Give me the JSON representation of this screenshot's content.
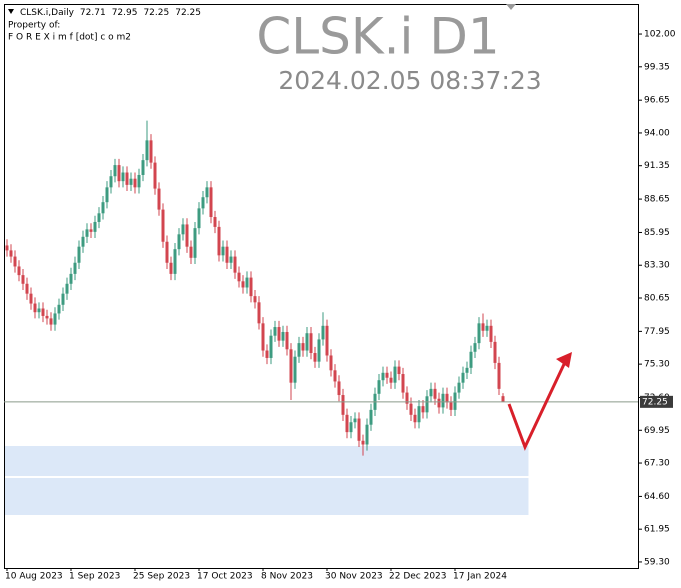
{
  "chart_data": {
    "type": "candlestick",
    "title": "CLSK.i D1",
    "subtitle": "2024.02.05 08:37:23",
    "symbol_label": "CLSK.i,Daily",
    "notes": [
      "Property of:",
      "F O R E X i m f [dot] c o m2"
    ],
    "categories": [
      "10 Aug 2023",
      null,
      null,
      null,
      null,
      null,
      null,
      null,
      null,
      null,
      null,
      null,
      null,
      null,
      null,
      null,
      "1 Sep 2023",
      null,
      null,
      null,
      null,
      null,
      null,
      null,
      null,
      null,
      null,
      null,
      null,
      null,
      null,
      null,
      "25 Sep 2023",
      null,
      null,
      null,
      null,
      null,
      null,
      null,
      null,
      null,
      null,
      null,
      null,
      null,
      null,
      null,
      "17 Oct 2023",
      null,
      null,
      null,
      null,
      null,
      null,
      null,
      null,
      null,
      null,
      null,
      null,
      null,
      null,
      null,
      "8 Nov 2023",
      null,
      null,
      null,
      null,
      null,
      null,
      null,
      null,
      null,
      null,
      null,
      null,
      null,
      null,
      null,
      "30 Nov 2023",
      null,
      null,
      null,
      null,
      null,
      null,
      null,
      null,
      null,
      null,
      null,
      null,
      null,
      null,
      null,
      "22 Dec 2023",
      null,
      null,
      null,
      null,
      null,
      null,
      null,
      null,
      null,
      null,
      null,
      null,
      null,
      null,
      null,
      "17 Jan 2024",
      null,
      null,
      null,
      null,
      null,
      null,
      null,
      null,
      null,
      null,
      null,
      null
    ],
    "open": [
      84.9,
      84.5,
      84.0,
      83.2,
      82.5,
      81.8,
      81.0,
      80.2,
      79.5,
      79.8,
      79.2,
      79.0,
      78.5,
      79.4,
      80.1,
      81.0,
      81.8,
      82.6,
      83.5,
      84.8,
      85.6,
      86.2,
      86.0,
      86.8,
      87.5,
      88.4,
      89.6,
      90.5,
      91.4,
      90.1,
      90.8,
      89.8,
      90.3,
      89.6,
      90.6,
      91.8,
      93.4,
      91.6,
      89.5,
      87.8,
      85.2,
      83.5,
      82.6,
      84.6,
      85.8,
      86.6,
      84.8,
      83.9,
      86.3,
      87.9,
      88.8,
      89.6,
      87.2,
      86.4,
      84.1,
      84.8,
      83.5,
      84.0,
      82.7,
      82.0,
      81.5,
      82.3,
      80.8,
      80.3,
      78.6,
      76.4,
      75.8,
      77.6,
      78.3,
      77.2,
      77.9,
      76.5,
      73.8,
      75.9,
      77.0,
      76.4,
      77.8,
      76.2,
      75.5,
      77.3,
      78.4,
      76.0,
      74.8,
      73.9,
      72.8,
      71.2,
      69.8,
      70.6,
      70.9,
      69.1,
      68.8,
      70.4,
      71.6,
      72.9,
      74.0,
      74.6,
      74.2,
      73.8,
      75.1,
      74.5,
      73.0,
      72.1,
      71.2,
      70.6,
      71.9,
      71.4,
      72.7,
      73.3,
      72.5,
      71.8,
      72.9,
      72.2,
      71.6,
      73.0,
      73.8,
      74.6,
      75.0,
      76.3,
      77.0,
      78.6,
      78.0,
      78.4,
      77.1,
      75.4,
      72.71
    ],
    "high": [
      85.4,
      85.0,
      84.5,
      83.7,
      83.0,
      82.3,
      81.5,
      80.7,
      80.3,
      80.3,
      79.7,
      79.5,
      79.9,
      80.6,
      81.5,
      82.3,
      83.1,
      84.0,
      85.3,
      86.1,
      86.7,
      86.7,
      87.3,
      88.0,
      88.9,
      90.1,
      91.0,
      91.9,
      91.9,
      91.3,
      91.3,
      90.8,
      90.8,
      91.1,
      92.3,
      95.0,
      93.9,
      92.1,
      90.0,
      88.3,
      85.7,
      84.0,
      85.1,
      86.3,
      87.1,
      87.1,
      85.3,
      86.8,
      88.4,
      89.3,
      90.1,
      90.1,
      87.7,
      86.9,
      85.3,
      85.3,
      84.5,
      84.5,
      83.2,
      82.5,
      82.8,
      82.8,
      81.3,
      80.8,
      79.1,
      76.9,
      78.1,
      78.8,
      78.8,
      78.4,
      78.4,
      77.0,
      76.4,
      77.5,
      77.5,
      78.3,
      78.3,
      76.7,
      77.8,
      79.5,
      78.9,
      76.5,
      75.3,
      74.4,
      73.3,
      71.7,
      71.1,
      71.4,
      71.4,
      69.6,
      70.9,
      72.1,
      73.4,
      74.5,
      75.1,
      75.1,
      74.7,
      75.6,
      75.6,
      75.0,
      73.5,
      72.6,
      71.7,
      72.4,
      72.4,
      73.2,
      73.8,
      73.8,
      73.0,
      73.4,
      73.4,
      72.7,
      73.5,
      74.3,
      75.1,
      75.5,
      76.8,
      77.5,
      79.1,
      79.4,
      78.9,
      78.9,
      77.6,
      75.9,
      72.95
    ],
    "low": [
      84.0,
      83.5,
      82.7,
      82.0,
      81.3,
      80.5,
      79.7,
      79.0,
      79.0,
      78.7,
      78.5,
      78.0,
      78.0,
      78.9,
      79.6,
      80.5,
      81.3,
      82.1,
      83.0,
      84.3,
      85.1,
      85.5,
      85.5,
      86.3,
      87.0,
      87.9,
      89.1,
      90.0,
      89.6,
      89.6,
      89.3,
      89.3,
      89.1,
      89.1,
      90.1,
      91.3,
      91.1,
      89.0,
      87.3,
      84.7,
      83.0,
      82.1,
      82.1,
      84.1,
      85.3,
      84.3,
      83.4,
      83.4,
      85.8,
      87.4,
      88.3,
      86.7,
      85.9,
      83.6,
      83.6,
      83.0,
      83.0,
      82.2,
      81.5,
      81.0,
      81.0,
      80.3,
      79.8,
      78.1,
      75.9,
      75.3,
      75.3,
      77.1,
      76.7,
      76.7,
      76.0,
      72.4,
      73.3,
      75.4,
      75.9,
      75.9,
      75.7,
      75.0,
      75.0,
      76.8,
      75.5,
      74.3,
      73.4,
      72.3,
      70.7,
      69.3,
      69.3,
      70.1,
      68.6,
      67.9,
      68.3,
      69.9,
      71.1,
      72.4,
      73.5,
      73.7,
      73.3,
      73.3,
      74.0,
      72.5,
      71.6,
      70.7,
      70.1,
      70.1,
      70.9,
      70.9,
      72.2,
      72.0,
      71.3,
      71.3,
      71.7,
      71.1,
      71.1,
      72.5,
      73.3,
      74.1,
      74.5,
      75.8,
      76.5,
      77.5,
      77.5,
      76.6,
      74.9,
      72.8,
      72.25
    ],
    "close": [
      84.5,
      84.0,
      83.2,
      82.5,
      81.8,
      81.0,
      80.2,
      79.5,
      79.8,
      79.2,
      79.0,
      78.5,
      79.4,
      80.1,
      81.0,
      81.8,
      82.6,
      83.5,
      84.8,
      85.6,
      86.2,
      86.0,
      86.8,
      87.5,
      88.4,
      89.6,
      90.5,
      91.4,
      90.1,
      90.8,
      89.8,
      90.3,
      89.6,
      90.6,
      91.8,
      93.4,
      91.6,
      89.5,
      87.8,
      85.2,
      83.5,
      82.6,
      84.6,
      85.8,
      86.6,
      84.8,
      83.9,
      86.3,
      87.9,
      88.8,
      89.6,
      87.2,
      86.4,
      84.1,
      84.8,
      83.5,
      84.0,
      82.7,
      82.0,
      81.5,
      82.3,
      80.8,
      80.3,
      78.6,
      76.4,
      75.8,
      77.6,
      78.3,
      77.2,
      77.9,
      76.5,
      73.8,
      75.9,
      77.0,
      76.4,
      77.8,
      76.2,
      75.5,
      77.3,
      78.4,
      76.0,
      74.8,
      73.9,
      72.8,
      71.2,
      69.8,
      70.6,
      70.9,
      69.1,
      68.8,
      70.4,
      71.6,
      72.9,
      74.0,
      74.6,
      74.2,
      73.8,
      75.1,
      74.5,
      73.0,
      72.1,
      71.2,
      70.6,
      71.9,
      71.4,
      72.7,
      73.3,
      72.5,
      71.8,
      72.9,
      72.2,
      71.6,
      73.0,
      73.8,
      74.6,
      75.0,
      76.3,
      77.0,
      78.6,
      78.0,
      78.4,
      77.1,
      75.4,
      73.3,
      72.25
    ],
    "up_color": "#3d9b80",
    "down_color": "#d2454f",
    "current_price": 72.25,
    "ylim": [
      58.81,
      104.43
    ],
    "yticks": [
      {
        "value": 102,
        "label": "102.00"
      },
      {
        "value": 99.35,
        "label": "99.35"
      },
      {
        "value": 96.65,
        "label": "96.65"
      },
      {
        "value": 94,
        "label": "94.00"
      },
      {
        "value": 91.35,
        "label": "91.35"
      },
      {
        "value": 88.65,
        "label": "88.65"
      },
      {
        "value": 85.95,
        "label": "85.95"
      },
      {
        "value": 83.3,
        "label": "83.30"
      },
      {
        "value": 80.65,
        "label": "80.65"
      },
      {
        "value": 77.95,
        "label": "77.95"
      },
      {
        "value": 75.3,
        "label": "75.30"
      },
      {
        "value": 72.6,
        "label": "72.60"
      },
      {
        "value": 69.95,
        "label": "69.95"
      },
      {
        "value": 67.3,
        "label": "67.30"
      },
      {
        "value": 64.6,
        "label": "64.60"
      },
      {
        "value": 61.95,
        "label": "61.95"
      },
      {
        "value": 59.3,
        "label": "59.30"
      }
    ]
  }
}
